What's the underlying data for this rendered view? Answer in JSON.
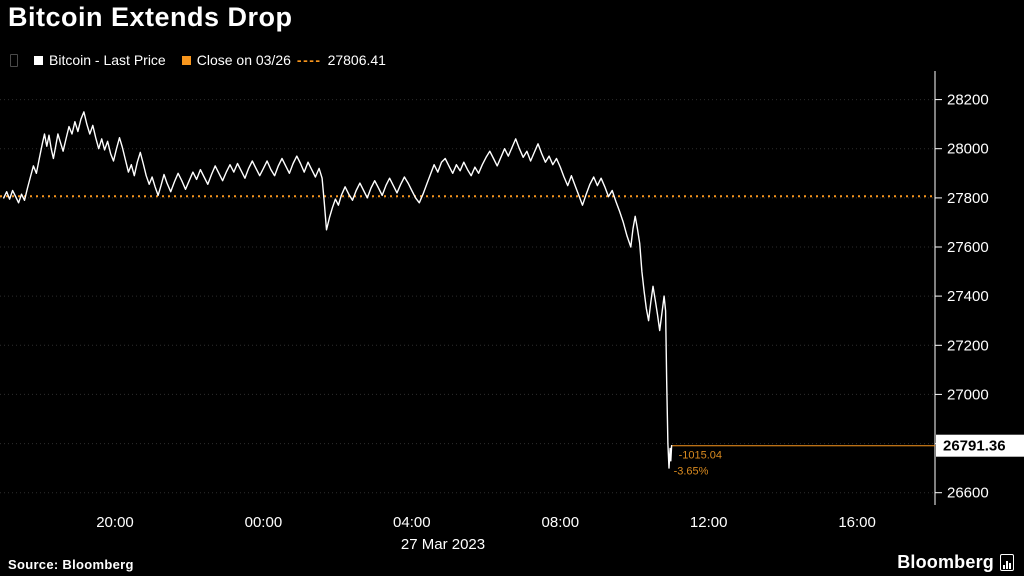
{
  "header": {
    "title": "Bitcoin Extends Drop"
  },
  "legend": {
    "series1": {
      "label": "Bitcoin - Last Price",
      "swatch_color": "#ffffff"
    },
    "series2": {
      "label_prefix": "Close on 03/26",
      "dashes": "----",
      "value": "27806.41",
      "swatch_color": "#f8961d"
    }
  },
  "footer": {
    "source": "Source: Bloomberg",
    "brand": "Bloomberg"
  },
  "colors": {
    "background": "#000000",
    "line": "#ffffff",
    "accent_orange": "#f8961d",
    "grid": "#2d2d2d",
    "axis": "#ffffff"
  },
  "chart_data": {
    "type": "line",
    "title": "Bitcoin Extends Drop",
    "series_name": "Bitcoin - Last Price",
    "x_unit": "hours since 26 Mar 00:00 (axis spans 26 Mar ~17:00 to 27 Mar ~18:00)",
    "x_date_label": "27 Mar 2023",
    "x_ticks": [
      {
        "t": 20,
        "label": "20:00"
      },
      {
        "t": 24,
        "label": "00:00"
      },
      {
        "t": 28,
        "label": "04:00"
      },
      {
        "t": 32,
        "label": "08:00"
      },
      {
        "t": 36,
        "label": "12:00"
      },
      {
        "t": 40,
        "label": "16:00"
      }
    ],
    "y_ticks": [
      28200,
      28000,
      27800,
      27600,
      27400,
      27200,
      27000,
      26800,
      26600
    ],
    "y_range": [
      26550,
      28300
    ],
    "t_range": [
      16.9,
      42.1
    ],
    "grid": true,
    "legend_position": "top-left",
    "close_line": {
      "label": "Close on 03/26",
      "value": 27806.41,
      "color": "#f8961d",
      "style": "dotted"
    },
    "last_price": {
      "value": 26791.36,
      "change": "-1015.04",
      "change_pct": "-3.65%"
    },
    "line_color": "#ffffff",
    "points": [
      [
        17.0,
        27800
      ],
      [
        17.08,
        27825
      ],
      [
        17.16,
        27795
      ],
      [
        17.24,
        27830
      ],
      [
        17.32,
        27805
      ],
      [
        17.4,
        27780
      ],
      [
        17.48,
        27815
      ],
      [
        17.56,
        27790
      ],
      [
        17.64,
        27840
      ],
      [
        17.72,
        27885
      ],
      [
        17.8,
        27930
      ],
      [
        17.88,
        27900
      ],
      [
        17.96,
        27960
      ],
      [
        18.04,
        28020
      ],
      [
        18.1,
        28060
      ],
      [
        18.16,
        28010
      ],
      [
        18.22,
        28055
      ],
      [
        18.28,
        28000
      ],
      [
        18.34,
        27960
      ],
      [
        18.4,
        28010
      ],
      [
        18.46,
        28060
      ],
      [
        18.52,
        28030
      ],
      [
        18.6,
        27990
      ],
      [
        18.68,
        28040
      ],
      [
        18.76,
        28090
      ],
      [
        18.84,
        28060
      ],
      [
        18.92,
        28110
      ],
      [
        19.0,
        28070
      ],
      [
        19.08,
        28120
      ],
      [
        19.16,
        28150
      ],
      [
        19.24,
        28100
      ],
      [
        19.32,
        28060
      ],
      [
        19.4,
        28095
      ],
      [
        19.48,
        28045
      ],
      [
        19.56,
        28000
      ],
      [
        19.64,
        28040
      ],
      [
        19.72,
        27995
      ],
      [
        19.8,
        28030
      ],
      [
        19.88,
        27980
      ],
      [
        19.96,
        27950
      ],
      [
        20.04,
        28000
      ],
      [
        20.12,
        28045
      ],
      [
        20.2,
        28005
      ],
      [
        20.28,
        27955
      ],
      [
        20.36,
        27905
      ],
      [
        20.44,
        27935
      ],
      [
        20.52,
        27890
      ],
      [
        20.6,
        27945
      ],
      [
        20.68,
        27985
      ],
      [
        20.76,
        27940
      ],
      [
        20.84,
        27890
      ],
      [
        20.92,
        27855
      ],
      [
        21.0,
        27885
      ],
      [
        21.08,
        27845
      ],
      [
        21.16,
        27810
      ],
      [
        21.24,
        27850
      ],
      [
        21.32,
        27895
      ],
      [
        21.4,
        27860
      ],
      [
        21.5,
        27825
      ],
      [
        21.6,
        27865
      ],
      [
        21.7,
        27900
      ],
      [
        21.8,
        27870
      ],
      [
        21.9,
        27835
      ],
      [
        22.0,
        27870
      ],
      [
        22.1,
        27905
      ],
      [
        22.2,
        27875
      ],
      [
        22.3,
        27915
      ],
      [
        22.4,
        27885
      ],
      [
        22.5,
        27855
      ],
      [
        22.6,
        27895
      ],
      [
        22.7,
        27930
      ],
      [
        22.8,
        27900
      ],
      [
        22.9,
        27870
      ],
      [
        23.0,
        27905
      ],
      [
        23.1,
        27935
      ],
      [
        23.2,
        27905
      ],
      [
        23.3,
        27940
      ],
      [
        23.4,
        27910
      ],
      [
        23.5,
        27880
      ],
      [
        23.6,
        27920
      ],
      [
        23.7,
        27950
      ],
      [
        23.8,
        27920
      ],
      [
        23.9,
        27890
      ],
      [
        24.0,
        27920
      ],
      [
        24.1,
        27950
      ],
      [
        24.2,
        27915
      ],
      [
        24.3,
        27890
      ],
      [
        24.4,
        27930
      ],
      [
        24.5,
        27960
      ],
      [
        24.6,
        27930
      ],
      [
        24.7,
        27900
      ],
      [
        24.8,
        27940
      ],
      [
        24.9,
        27970
      ],
      [
        25.0,
        27940
      ],
      [
        25.1,
        27905
      ],
      [
        25.2,
        27945
      ],
      [
        25.3,
        27915
      ],
      [
        25.4,
        27885
      ],
      [
        25.5,
        27920
      ],
      [
        25.58,
        27880
      ],
      [
        25.64,
        27780
      ],
      [
        25.7,
        27670
      ],
      [
        25.78,
        27720
      ],
      [
        25.86,
        27760
      ],
      [
        25.94,
        27795
      ],
      [
        26.02,
        27770
      ],
      [
        26.1,
        27810
      ],
      [
        26.2,
        27845
      ],
      [
        26.3,
        27815
      ],
      [
        26.4,
        27790
      ],
      [
        26.5,
        27830
      ],
      [
        26.6,
        27860
      ],
      [
        26.7,
        27830
      ],
      [
        26.8,
        27800
      ],
      [
        26.9,
        27840
      ],
      [
        27.0,
        27870
      ],
      [
        27.1,
        27840
      ],
      [
        27.2,
        27810
      ],
      [
        27.3,
        27850
      ],
      [
        27.4,
        27880
      ],
      [
        27.5,
        27850
      ],
      [
        27.6,
        27820
      ],
      [
        27.7,
        27855
      ],
      [
        27.8,
        27885
      ],
      [
        27.9,
        27860
      ],
      [
        28.0,
        27830
      ],
      [
        28.1,
        27800
      ],
      [
        28.2,
        27780
      ],
      [
        28.3,
        27815
      ],
      [
        28.4,
        27855
      ],
      [
        28.5,
        27895
      ],
      [
        28.6,
        27935
      ],
      [
        28.7,
        27905
      ],
      [
        28.8,
        27945
      ],
      [
        28.9,
        27960
      ],
      [
        29.0,
        27930
      ],
      [
        29.1,
        27900
      ],
      [
        29.2,
        27935
      ],
      [
        29.3,
        27910
      ],
      [
        29.4,
        27945
      ],
      [
        29.5,
        27915
      ],
      [
        29.6,
        27890
      ],
      [
        29.7,
        27925
      ],
      [
        29.8,
        27900
      ],
      [
        29.9,
        27935
      ],
      [
        30.0,
        27965
      ],
      [
        30.1,
        27990
      ],
      [
        30.2,
        27960
      ],
      [
        30.3,
        27930
      ],
      [
        30.4,
        27965
      ],
      [
        30.5,
        28000
      ],
      [
        30.6,
        27970
      ],
      [
        30.7,
        28005
      ],
      [
        30.8,
        28040
      ],
      [
        30.9,
        28000
      ],
      [
        31.0,
        27965
      ],
      [
        31.1,
        27990
      ],
      [
        31.2,
        27950
      ],
      [
        31.3,
        27985
      ],
      [
        31.4,
        28020
      ],
      [
        31.5,
        27980
      ],
      [
        31.6,
        27945
      ],
      [
        31.7,
        27970
      ],
      [
        31.8,
        27935
      ],
      [
        31.9,
        27960
      ],
      [
        32.0,
        27925
      ],
      [
        32.1,
        27885
      ],
      [
        32.2,
        27850
      ],
      [
        32.3,
        27890
      ],
      [
        32.4,
        27850
      ],
      [
        32.5,
        27810
      ],
      [
        32.6,
        27770
      ],
      [
        32.7,
        27815
      ],
      [
        32.8,
        27855
      ],
      [
        32.9,
        27885
      ],
      [
        33.0,
        27850
      ],
      [
        33.1,
        27880
      ],
      [
        33.2,
        27845
      ],
      [
        33.3,
        27805
      ],
      [
        33.4,
        27830
      ],
      [
        33.5,
        27785
      ],
      [
        33.6,
        27745
      ],
      [
        33.7,
        27700
      ],
      [
        33.8,
        27645
      ],
      [
        33.9,
        27600
      ],
      [
        33.96,
        27675
      ],
      [
        34.02,
        27725
      ],
      [
        34.08,
        27675
      ],
      [
        34.14,
        27615
      ],
      [
        34.2,
        27500
      ],
      [
        34.26,
        27420
      ],
      [
        34.32,
        27350
      ],
      [
        34.38,
        27300
      ],
      [
        34.44,
        27375
      ],
      [
        34.5,
        27440
      ],
      [
        34.56,
        27385
      ],
      [
        34.62,
        27325
      ],
      [
        34.68,
        27260
      ],
      [
        34.74,
        27330
      ],
      [
        34.8,
        27400
      ],
      [
        34.84,
        27340
      ],
      [
        34.87,
        27050
      ],
      [
        34.9,
        26800
      ],
      [
        34.93,
        26700
      ],
      [
        34.96,
        26780
      ],
      [
        34.98,
        26730
      ],
      [
        35.0,
        26791.36
      ]
    ]
  }
}
